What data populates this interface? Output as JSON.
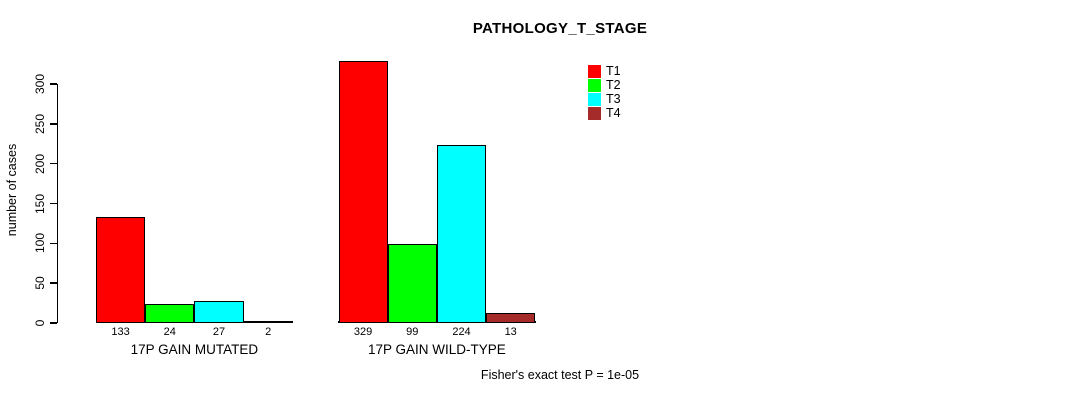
{
  "chart_data": {
    "type": "bar",
    "title": "PATHOLOGY_T_STAGE",
    "ylabel": "number of cases",
    "xlabel": "",
    "ylim": [
      0,
      300
    ],
    "yticks": [
      0,
      50,
      100,
      150,
      200,
      250,
      300
    ],
    "grid": false,
    "legend_position": "top-right-inside",
    "categories": [
      "17P GAIN MUTATED",
      "17P GAIN WILD-TYPE"
    ],
    "series": [
      {
        "name": "T1",
        "color": "#ff0000",
        "values": [
          133,
          329
        ]
      },
      {
        "name": "T2",
        "color": "#00ff00",
        "values": [
          24,
          99
        ]
      },
      {
        "name": "T3",
        "color": "#00ffff",
        "values": [
          27,
          224
        ]
      },
      {
        "name": "T4",
        "color": "#a52a2a",
        "values": [
          2,
          13
        ]
      }
    ],
    "annotation": "Fisher's exact test P = 1e-05"
  }
}
